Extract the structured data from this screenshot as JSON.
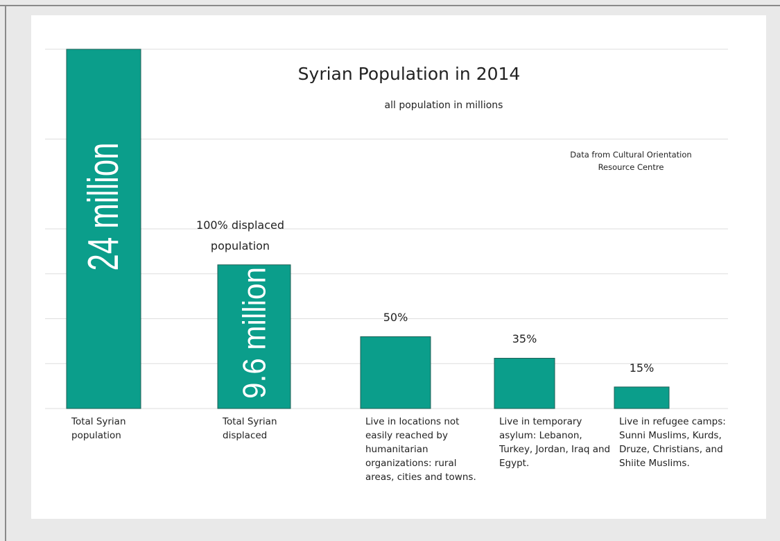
{
  "chart_data": {
    "type": "bar",
    "title": "Syrian Population in 2014",
    "subtitle": "all population in millions",
    "source": "Data from Cultural Orientation Resource Centre",
    "categories": [
      "Total Syrian population",
      "Total Syrian displaced",
      "Live in locations not easily reached by humanitarian organizations: rural areas, cities and towns.",
      "Live in temporary asylum: Lebanon, Turkey, Jordan, Iraq and Egypt.",
      "Live in refugee camps: Sunni Muslims, Kurds, Druze, Christians, and Shiite Muslims."
    ],
    "values": [
      24,
      9.6,
      4.8,
      3.36,
      1.44
    ],
    "value_labels": [
      "24 million",
      "9.6 million",
      null,
      null,
      null
    ],
    "annotations": [
      null,
      "100% displaced population",
      "50%",
      "35%",
      "15%"
    ],
    "color": "#0b9e8b",
    "ylim": [
      0,
      24
    ],
    "yticks": [
      0,
      3,
      6,
      9,
      12,
      18,
      24
    ],
    "grid": true
  }
}
